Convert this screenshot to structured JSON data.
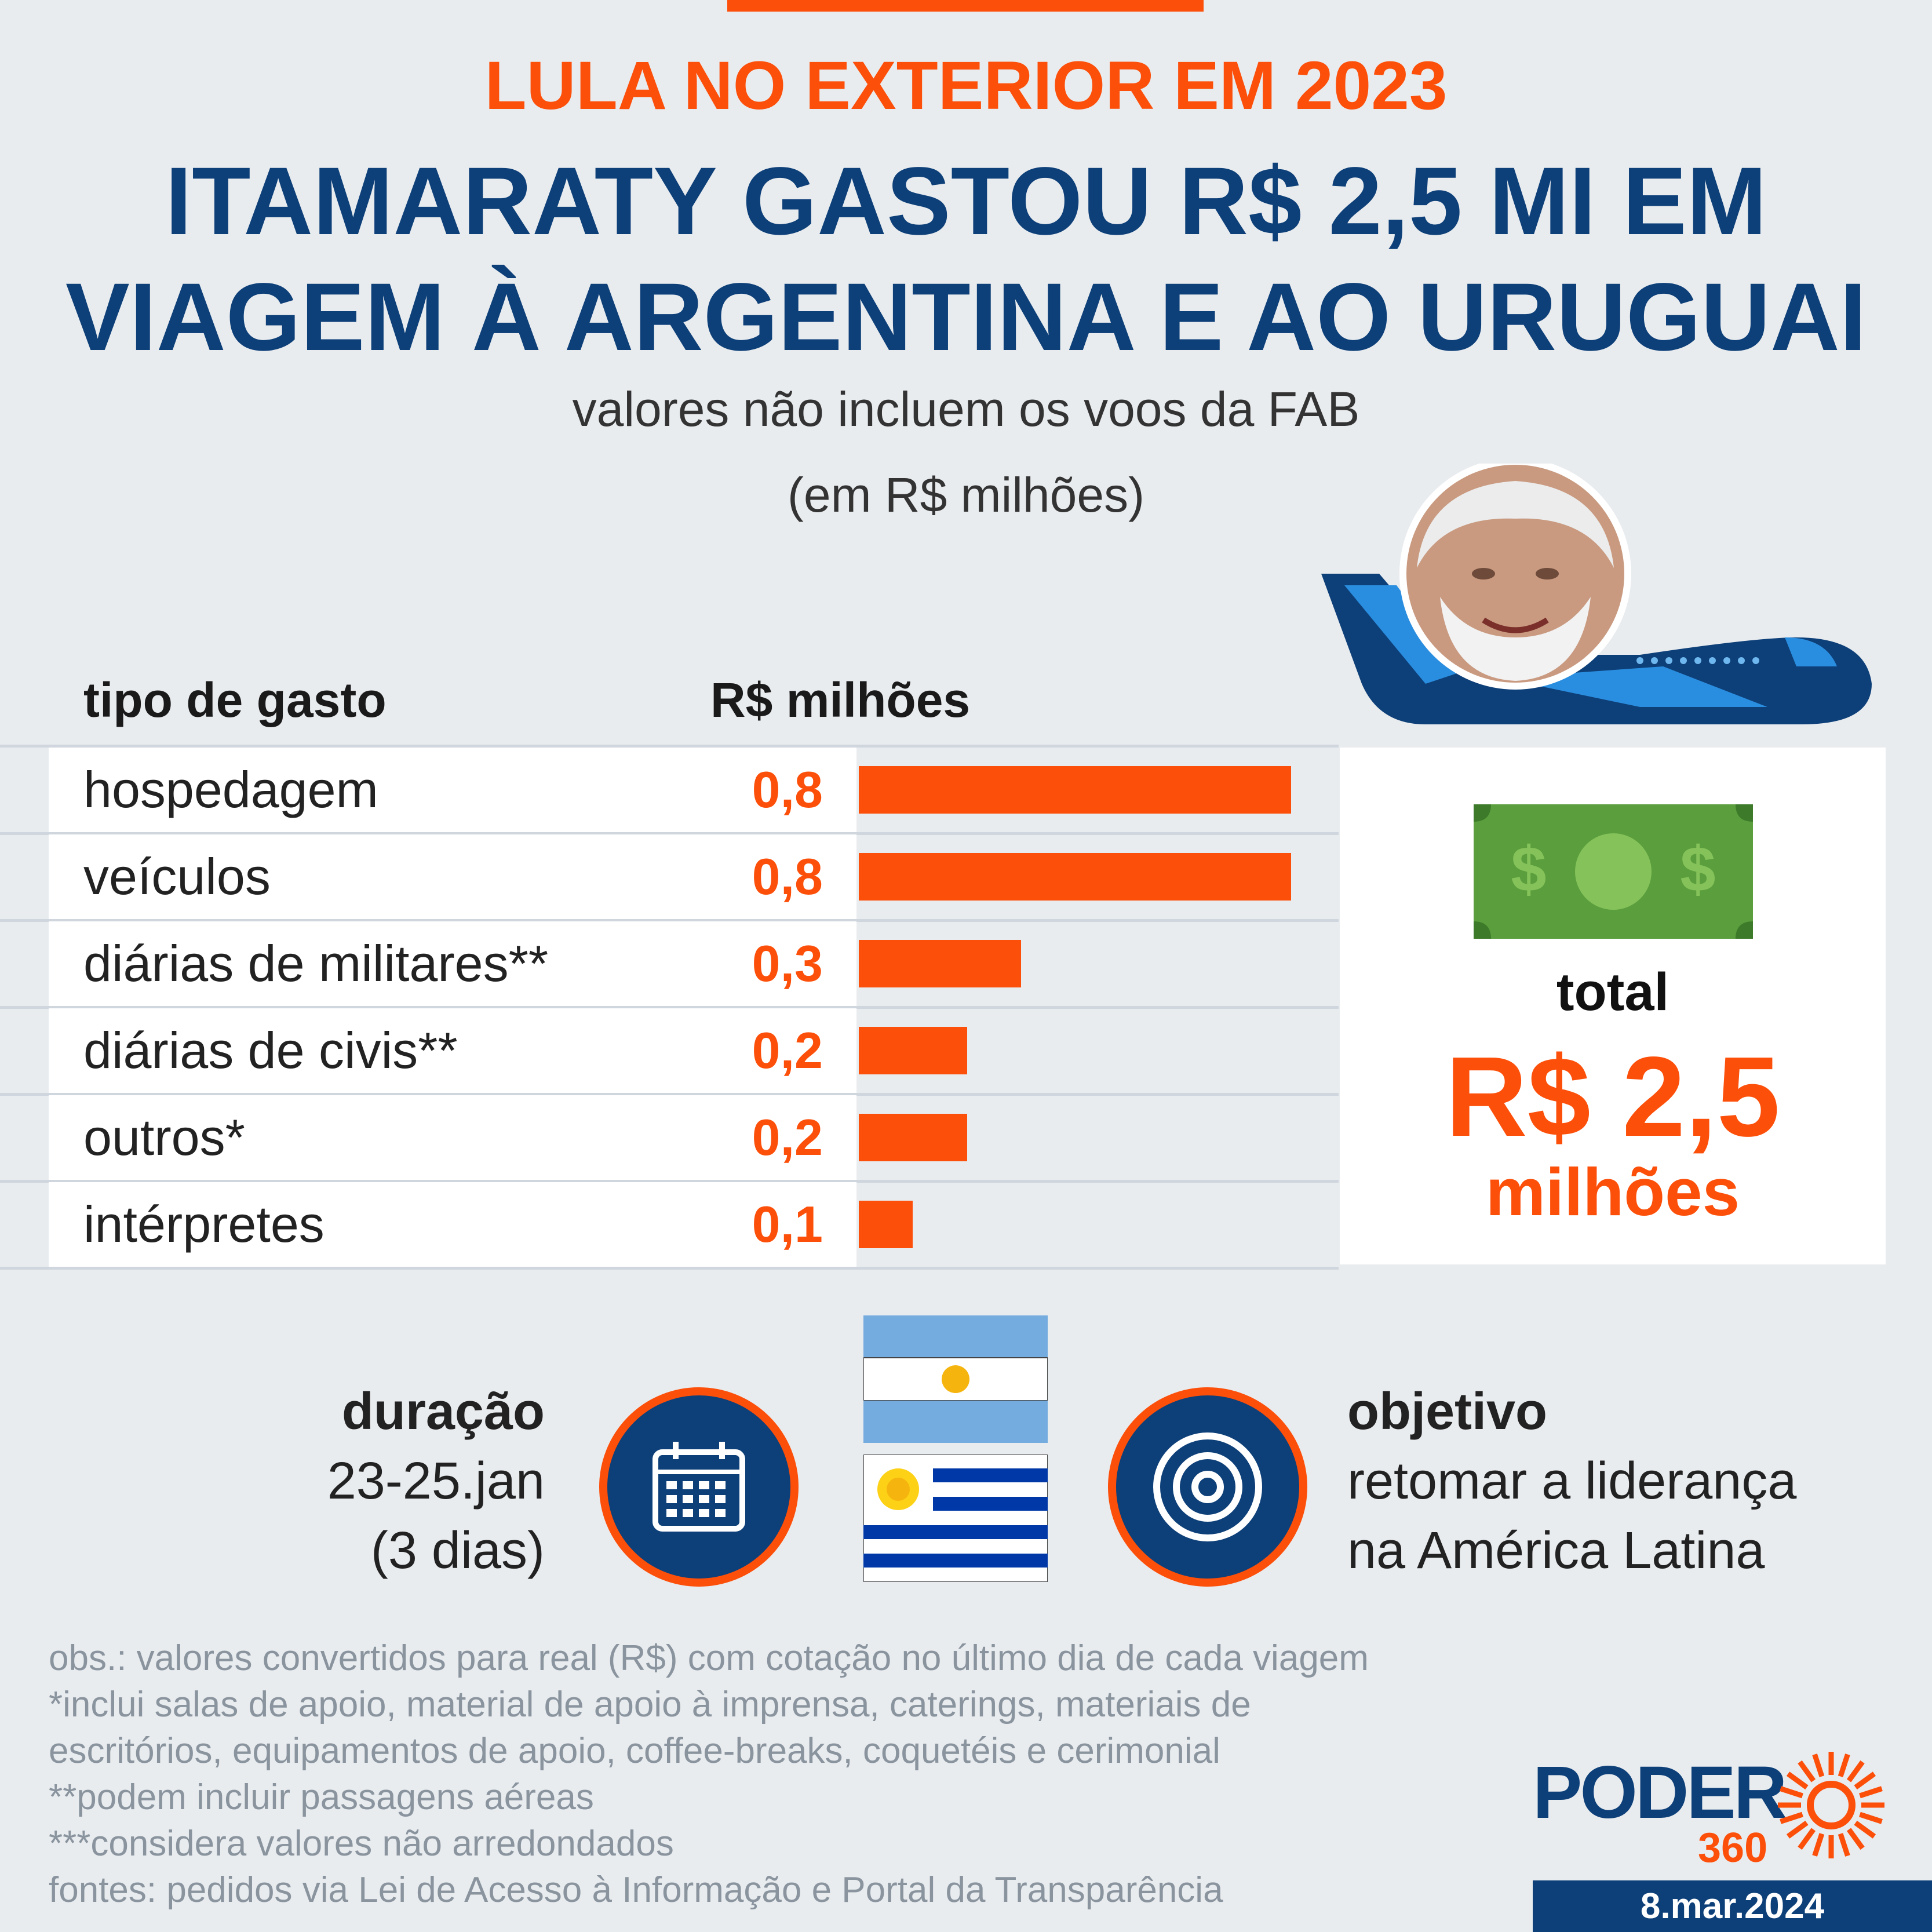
{
  "header": {
    "kicker": "LULA NO EXTERIOR EM 2023",
    "headline_line1": "ITAMARATY GASTOU R$ 2,5 MI EM",
    "headline_line2": "VIAGEM À ARGENTINA E AO URUGUAI",
    "subtitle": "valores não incluem os voos da FAB",
    "unit_note": "(em R$ milhões)"
  },
  "table": {
    "col_type": "tipo de gasto",
    "col_value": "R$ milhões"
  },
  "chart_data": {
    "type": "bar",
    "orientation": "horizontal",
    "categories": [
      "hospedagem",
      "veículos",
      "diárias de militares**",
      "diárias de civis**",
      "outros*",
      "intérpretes"
    ],
    "values": [
      0.8,
      0.8,
      0.3,
      0.2,
      0.2,
      0.1
    ],
    "value_labels": [
      "0,8",
      "0,8",
      "0,3",
      "0,2",
      "0,2",
      "0,1"
    ],
    "xlim": [
      0,
      0.8
    ],
    "color": "#fc4f0a"
  },
  "total": {
    "label": "total",
    "value": "R$ 2,5",
    "unit": "milhões"
  },
  "trip": {
    "duration_label": "duração",
    "duration_dates": "23-25.jan",
    "duration_days": "(3 dias)",
    "objective_label": "objetivo",
    "objective_line1": "retomar a liderança",
    "objective_line2": "na América Latina"
  },
  "notes": [
    "obs.: valores convertidos para real (R$) com cotação no último dia de cada viagem",
    "*inclui salas de apoio, material de apoio à imprensa, caterings, materiais de",
    "escritórios, equipamentos de apoio, coffee-breaks, coquetéis e cerimonial",
    "**podem incluir passagens aéreas",
    "***considera valores não arredondados",
    "fontes: pedidos via Lei de Acesso à Informação e Portal da Transparência"
  ],
  "brand": {
    "name": "PODER",
    "number": "360",
    "date": "8.mar.2024"
  },
  "colors": {
    "accent": "#fc4f0a",
    "navy": "#0d3f78",
    "background": "#e9ecef"
  },
  "icons": [
    "airplane-icon",
    "money-bill-icon",
    "calendar-icon",
    "target-icon",
    "argentina-flag-icon",
    "uruguay-flag-icon",
    "sun-logo-icon"
  ]
}
